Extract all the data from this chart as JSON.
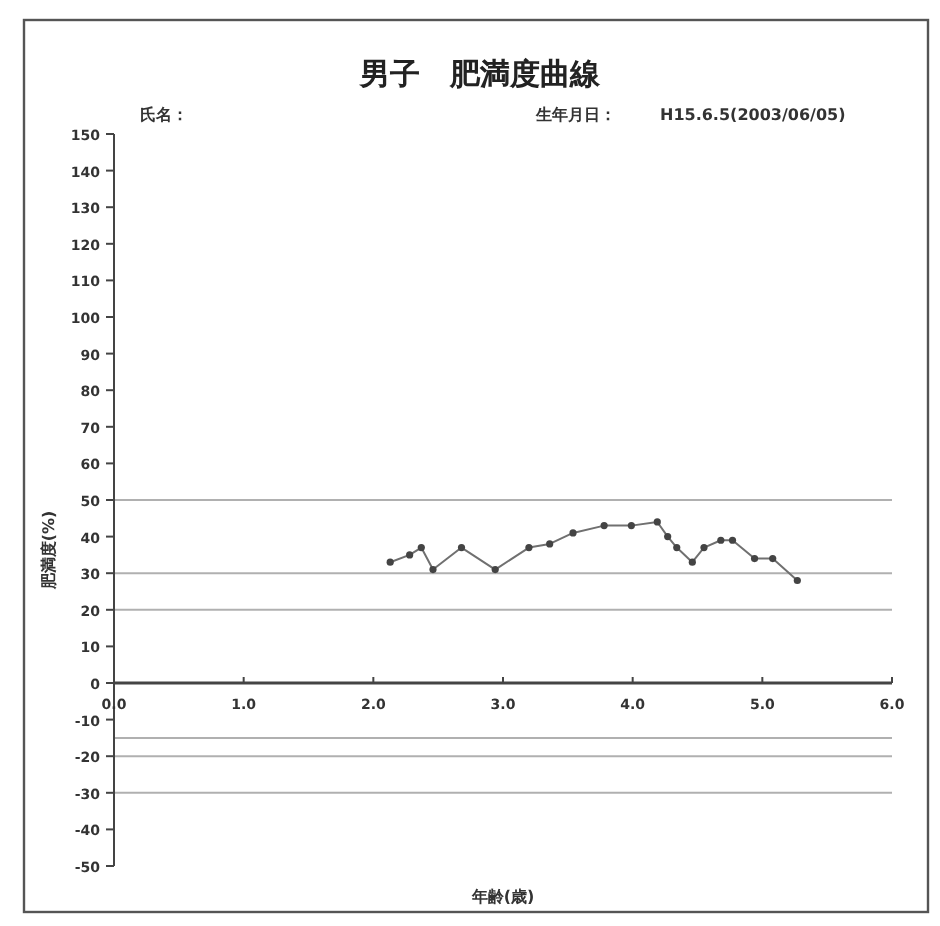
{
  "chart_data": {
    "type": "line",
    "title": "男子　肥満度曲線",
    "xlabel": "年齢(歳)",
    "ylabel": "肥満度(%)",
    "annotations": [
      "氏名：",
      "生年月日：",
      "H15.6.5(2003/06/05)"
    ],
    "series": [
      {
        "color": "#707070",
        "x": [
          2.13,
          2.28,
          2.37,
          2.46,
          2.68,
          2.94,
          3.2,
          3.36,
          3.54,
          3.78,
          3.99,
          4.19,
          4.27,
          4.34,
          4.46,
          4.55,
          4.68,
          4.77,
          4.94,
          5.08,
          5.27
        ],
        "values": [
          33,
          35,
          37,
          31,
          37,
          31,
          37,
          38,
          41,
          43,
          43,
          44,
          40,
          37,
          33,
          37,
          39,
          39,
          34,
          34,
          28
        ]
      }
    ],
    "xlim": [
      0,
      6
    ],
    "xticks": [
      {
        "value": 0,
        "label": "0.0"
      },
      {
        "value": 1,
        "label": "1.0"
      },
      {
        "value": 2,
        "label": "2.0"
      },
      {
        "value": 3,
        "label": "3.0"
      },
      {
        "value": 4,
        "label": "4.0"
      },
      {
        "value": 5,
        "label": "5.0"
      },
      {
        "value": 6,
        "label": "6.0"
      }
    ],
    "ylim": [
      -50,
      150
    ],
    "yticks": [
      -50,
      -40,
      -30,
      -20,
      -10,
      0,
      10,
      20,
      30,
      40,
      50,
      60,
      70,
      80,
      90,
      100,
      110,
      120,
      130,
      140,
      150
    ],
    "ref_lines": [
      {
        "axis": "y",
        "value": 50,
        "color": "#b0b0b0"
      },
      {
        "axis": "y",
        "value": 30,
        "color": "#b0b0b0"
      },
      {
        "axis": "y",
        "value": 20,
        "color": "#b0b0b0"
      },
      {
        "axis": "y",
        "value": -15,
        "color": "#b0b0b0"
      },
      {
        "axis": "y",
        "value": -20,
        "color": "#b0b0b0"
      },
      {
        "axis": "y",
        "value": -30,
        "color": "#b0b0b0"
      }
    ],
    "grid": false,
    "marker": "circle",
    "line_style": "solid"
  }
}
